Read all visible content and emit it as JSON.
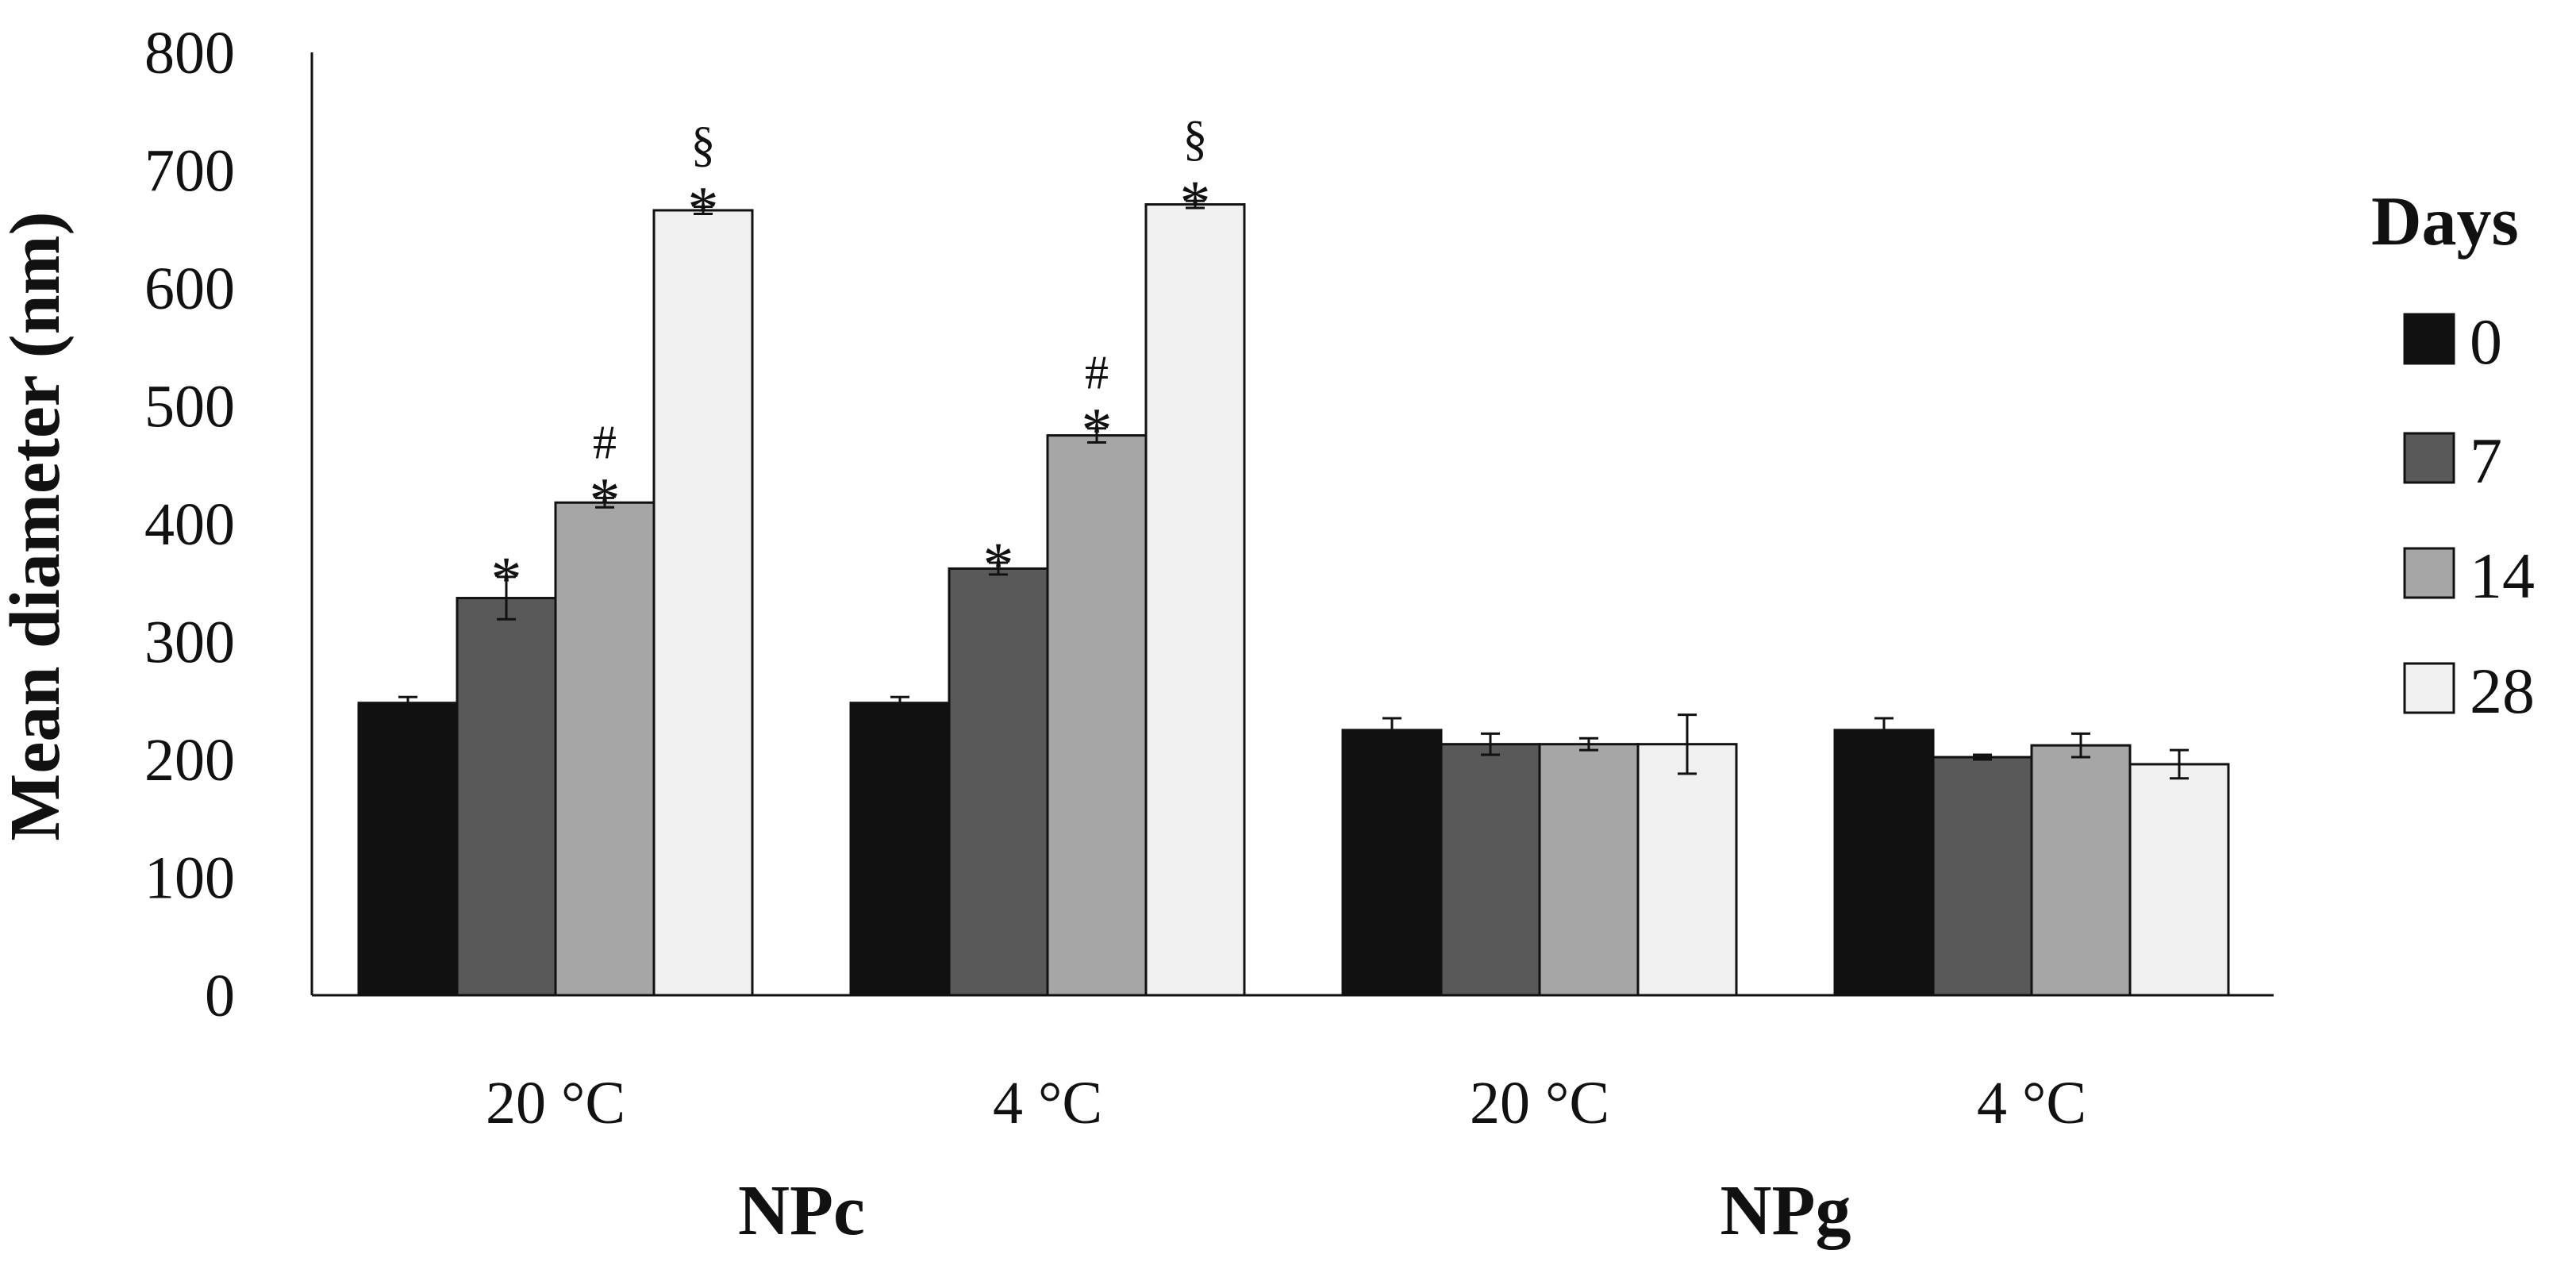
{
  "chart_data": {
    "type": "bar",
    "title": "",
    "ylabel": "Mean diameter (nm)",
    "xlabel": "",
    "ylim": [
      0,
      800
    ],
    "yticks": [
      0,
      100,
      200,
      300,
      400,
      500,
      600,
      700,
      800
    ],
    "grid": false,
    "categories": [
      "20 °C",
      "4 °C",
      "20 °C",
      "4 °C"
    ],
    "groups": [
      {
        "label": "NPc",
        "categories": [
          0,
          1
        ]
      },
      {
        "label": "NPg",
        "categories": [
          2,
          3
        ]
      }
    ],
    "legend": {
      "title": "Days",
      "position": "right"
    },
    "series": [
      {
        "name": "0",
        "color": "#111111",
        "values": [
          248,
          248,
          225,
          225
        ],
        "errors": [
          5,
          5,
          10,
          10
        ],
        "annotations": [
          "",
          "",
          "",
          ""
        ]
      },
      {
        "name": "7",
        "color": "#595959",
        "values": [
          337,
          362,
          213,
          202
        ],
        "errors": [
          18,
          5,
          9,
          2
        ],
        "annotations": [
          "*",
          "*",
          "",
          ""
        ]
      },
      {
        "name": "14",
        "color": "#a6a6a6",
        "values": [
          418,
          475,
          213,
          212
        ],
        "errors": [
          4,
          6,
          5,
          10
        ],
        "annotations": [
          "*#",
          "*#",
          "",
          ""
        ]
      },
      {
        "name": "28",
        "color": "#f0f0f0",
        "values": [
          666,
          671,
          213,
          196
        ],
        "errors": [
          3,
          3,
          25,
          12
        ],
        "annotations": [
          "*§",
          "*§",
          "",
          ""
        ]
      }
    ]
  }
}
